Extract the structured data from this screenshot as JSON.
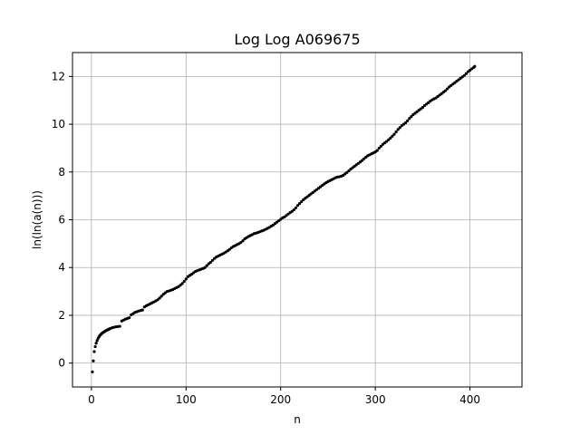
{
  "chart_data": {
    "type": "scatter",
    "title": "Log Log A069675",
    "xlabel": "n",
    "ylabel": "ln(ln(a(n)))",
    "xlim": [
      -20,
      455
    ],
    "ylim": [
      -1,
      13
    ],
    "xticks": [
      0,
      100,
      200,
      300,
      400
    ],
    "yticks": [
      0,
      2,
      4,
      6,
      8,
      10,
      12
    ],
    "grid": true,
    "marker_color": "#000000",
    "series": [
      {
        "points": [
          [
            1,
            -0.37
          ],
          [
            2,
            0.09
          ],
          [
            3,
            0.48
          ],
          [
            4,
            0.69
          ],
          [
            5,
            0.83
          ],
          [
            6,
            0.94
          ],
          [
            7,
            1.03
          ],
          [
            8,
            1.1
          ],
          [
            9,
            1.16
          ],
          [
            10,
            1.2
          ],
          [
            11,
            1.24
          ],
          [
            12,
            1.27
          ],
          [
            13,
            1.3
          ],
          [
            14,
            1.32
          ],
          [
            15,
            1.35
          ],
          [
            16,
            1.37
          ],
          [
            17,
            1.39
          ],
          [
            18,
            1.41
          ],
          [
            19,
            1.43
          ],
          [
            20,
            1.45
          ],
          [
            22,
            1.48
          ],
          [
            24,
            1.5
          ],
          [
            26,
            1.52
          ],
          [
            28,
            1.53
          ],
          [
            30,
            1.54
          ],
          [
            32,
            1.76
          ],
          [
            34,
            1.8
          ],
          [
            36,
            1.84
          ],
          [
            38,
            1.87
          ],
          [
            40,
            1.9
          ],
          [
            42,
            2.02
          ],
          [
            44,
            2.07
          ],
          [
            46,
            2.12
          ],
          [
            48,
            2.15
          ],
          [
            50,
            2.18
          ],
          [
            52,
            2.2
          ],
          [
            54,
            2.22
          ],
          [
            56,
            2.35
          ],
          [
            58,
            2.4
          ],
          [
            60,
            2.44
          ],
          [
            62,
            2.48
          ],
          [
            64,
            2.52
          ],
          [
            66,
            2.56
          ],
          [
            68,
            2.6
          ],
          [
            70,
            2.65
          ],
          [
            72,
            2.72
          ],
          [
            74,
            2.8
          ],
          [
            76,
            2.88
          ],
          [
            78,
            2.94
          ],
          [
            80,
            3.0
          ],
          [
            82,
            3.02
          ],
          [
            84,
            3.05
          ],
          [
            86,
            3.08
          ],
          [
            88,
            3.12
          ],
          [
            90,
            3.16
          ],
          [
            92,
            3.2
          ],
          [
            94,
            3.26
          ],
          [
            96,
            3.33
          ],
          [
            98,
            3.42
          ],
          [
            100,
            3.52
          ],
          [
            102,
            3.62
          ],
          [
            104,
            3.67
          ],
          [
            106,
            3.72
          ],
          [
            108,
            3.78
          ],
          [
            110,
            3.84
          ],
          [
            112,
            3.87
          ],
          [
            114,
            3.9
          ],
          [
            116,
            3.93
          ],
          [
            118,
            3.96
          ],
          [
            120,
            4.0
          ],
          [
            122,
            4.08
          ],
          [
            124,
            4.16
          ],
          [
            126,
            4.22
          ],
          [
            128,
            4.3
          ],
          [
            130,
            4.38
          ],
          [
            132,
            4.44
          ],
          [
            134,
            4.48
          ],
          [
            136,
            4.52
          ],
          [
            138,
            4.56
          ],
          [
            140,
            4.6
          ],
          [
            142,
            4.65
          ],
          [
            144,
            4.7
          ],
          [
            146,
            4.76
          ],
          [
            148,
            4.83
          ],
          [
            150,
            4.88
          ],
          [
            152,
            4.92
          ],
          [
            154,
            4.96
          ],
          [
            156,
            5.0
          ],
          [
            158,
            5.05
          ],
          [
            160,
            5.12
          ],
          [
            162,
            5.2
          ],
          [
            164,
            5.25
          ],
          [
            166,
            5.3
          ],
          [
            168,
            5.34
          ],
          [
            170,
            5.38
          ],
          [
            172,
            5.42
          ],
          [
            174,
            5.44
          ],
          [
            176,
            5.47
          ],
          [
            178,
            5.5
          ],
          [
            180,
            5.53
          ],
          [
            182,
            5.56
          ],
          [
            184,
            5.6
          ],
          [
            186,
            5.64
          ],
          [
            188,
            5.68
          ],
          [
            190,
            5.73
          ],
          [
            192,
            5.78
          ],
          [
            194,
            5.84
          ],
          [
            196,
            5.9
          ],
          [
            198,
            5.96
          ],
          [
            200,
            6.02
          ],
          [
            202,
            6.08
          ],
          [
            204,
            6.12
          ],
          [
            206,
            6.18
          ],
          [
            208,
            6.24
          ],
          [
            210,
            6.3
          ],
          [
            212,
            6.35
          ],
          [
            214,
            6.42
          ],
          [
            216,
            6.5
          ],
          [
            218,
            6.6
          ],
          [
            220,
            6.68
          ],
          [
            222,
            6.76
          ],
          [
            224,
            6.84
          ],
          [
            226,
            6.9
          ],
          [
            228,
            6.96
          ],
          [
            230,
            7.02
          ],
          [
            232,
            7.08
          ],
          [
            234,
            7.14
          ],
          [
            236,
            7.2
          ],
          [
            238,
            7.26
          ],
          [
            240,
            7.32
          ],
          [
            242,
            7.38
          ],
          [
            244,
            7.44
          ],
          [
            246,
            7.5
          ],
          [
            248,
            7.55
          ],
          [
            250,
            7.6
          ],
          [
            252,
            7.64
          ],
          [
            254,
            7.68
          ],
          [
            256,
            7.72
          ],
          [
            258,
            7.76
          ],
          [
            260,
            7.79
          ],
          [
            262,
            7.8
          ],
          [
            264,
            7.82
          ],
          [
            266,
            7.86
          ],
          [
            268,
            7.92
          ],
          [
            270,
            7.98
          ],
          [
            272,
            8.05
          ],
          [
            274,
            8.12
          ],
          [
            276,
            8.18
          ],
          [
            278,
            8.24
          ],
          [
            280,
            8.3
          ],
          [
            282,
            8.36
          ],
          [
            284,
            8.42
          ],
          [
            286,
            8.48
          ],
          [
            288,
            8.55
          ],
          [
            290,
            8.62
          ],
          [
            292,
            8.68
          ],
          [
            294,
            8.72
          ],
          [
            296,
            8.76
          ],
          [
            298,
            8.8
          ],
          [
            300,
            8.84
          ],
          [
            302,
            8.9
          ],
          [
            304,
            9.0
          ],
          [
            306,
            9.08
          ],
          [
            308,
            9.16
          ],
          [
            310,
            9.22
          ],
          [
            312,
            9.28
          ],
          [
            314,
            9.35
          ],
          [
            316,
            9.42
          ],
          [
            318,
            9.5
          ],
          [
            320,
            9.58
          ],
          [
            322,
            9.68
          ],
          [
            324,
            9.78
          ],
          [
            326,
            9.86
          ],
          [
            328,
            9.94
          ],
          [
            330,
            10.0
          ],
          [
            332,
            10.06
          ],
          [
            334,
            10.14
          ],
          [
            336,
            10.24
          ],
          [
            338,
            10.32
          ],
          [
            340,
            10.4
          ],
          [
            342,
            10.46
          ],
          [
            344,
            10.52
          ],
          [
            346,
            10.58
          ],
          [
            348,
            10.64
          ],
          [
            350,
            10.7
          ],
          [
            352,
            10.78
          ],
          [
            354,
            10.84
          ],
          [
            356,
            10.9
          ],
          [
            358,
            10.96
          ],
          [
            360,
            11.02
          ],
          [
            362,
            11.06
          ],
          [
            364,
            11.1
          ],
          [
            366,
            11.16
          ],
          [
            368,
            11.22
          ],
          [
            370,
            11.28
          ],
          [
            372,
            11.34
          ],
          [
            374,
            11.4
          ],
          [
            376,
            11.48
          ],
          [
            378,
            11.56
          ],
          [
            380,
            11.62
          ],
          [
            382,
            11.68
          ],
          [
            384,
            11.74
          ],
          [
            386,
            11.8
          ],
          [
            388,
            11.86
          ],
          [
            390,
            11.92
          ],
          [
            392,
            11.98
          ],
          [
            394,
            12.04
          ],
          [
            396,
            12.12
          ],
          [
            398,
            12.2
          ],
          [
            400,
            12.26
          ],
          [
            402,
            12.32
          ],
          [
            404,
            12.38
          ],
          [
            405,
            12.42
          ]
        ]
      }
    ]
  }
}
